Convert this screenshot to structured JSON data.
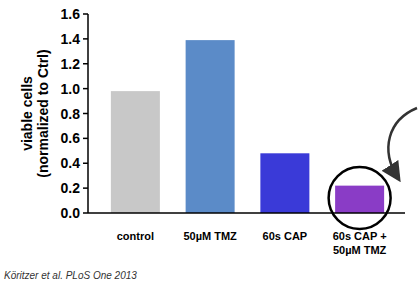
{
  "chart_data": {
    "type": "bar",
    "y_label": "viable cells\n(normalized to Ctrl)",
    "categories": [
      "control",
      "50µM TMZ",
      "60s CAP",
      "60s CAP +\n50µM TMZ"
    ],
    "values": [
      0.98,
      1.39,
      0.48,
      0.22
    ],
    "colors": [
      "#c8c8c8",
      "#5b8bc8",
      "#3a3ad8",
      "#8a3cc6"
    ],
    "ylim": [
      0,
      1.6
    ],
    "yticks": [
      {
        "value": 0,
        "label": "0.0"
      },
      {
        "value": 0.2,
        "label": "0.2"
      },
      {
        "value": 0.4,
        "label": "0.4"
      },
      {
        "value": 0.6,
        "label": "0.6"
      },
      {
        "value": 0.8,
        "label": "0.8"
      },
      {
        "value": 1,
        "label": "1.0"
      },
      {
        "value": 1.2,
        "label": "1.2"
      },
      {
        "value": 1.4,
        "label": "1.4"
      },
      {
        "value": 1.6,
        "label": "1.6"
      }
    ],
    "grid": false,
    "annotations": [
      "Köritzer et al. PLoS One 2013"
    ]
  }
}
